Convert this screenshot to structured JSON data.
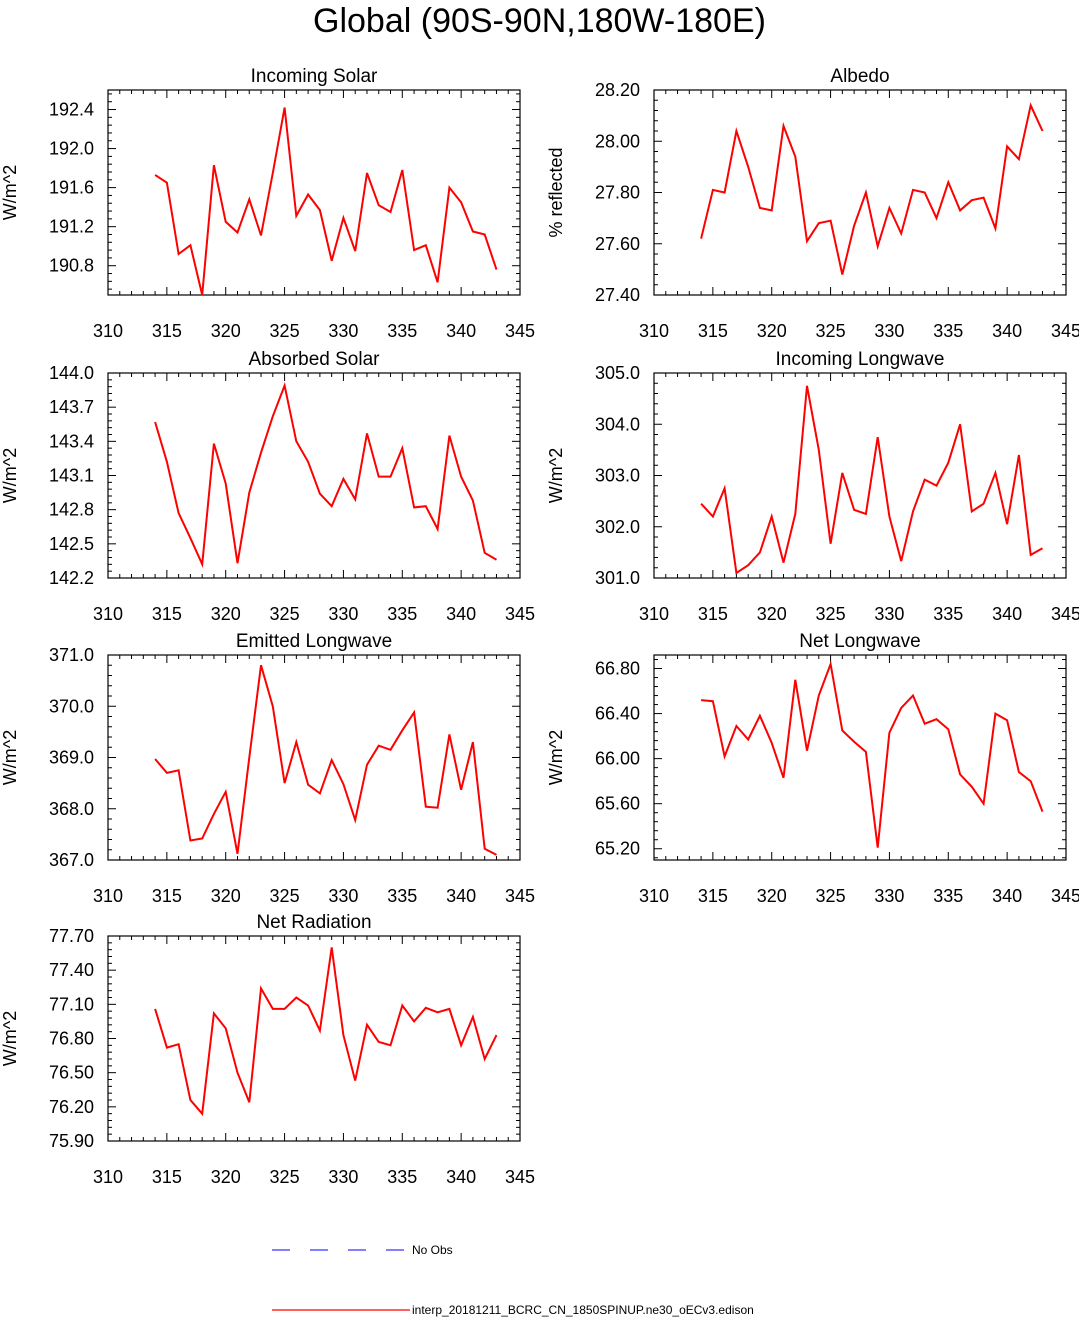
{
  "title": "Global (90S-90N,180W-180E)",
  "legend": {
    "obs_label": "No Obs",
    "obs_color": "#3333ff",
    "model_label": "interp_20181211_BCRC_CN_1850SPINUP.ne30_oECv3.edison",
    "model_color": "#ff0000"
  },
  "chart_data": [
    {
      "type": "line",
      "title": "Incoming Solar",
      "ylabel": "W/m^2",
      "xlim": [
        310,
        345
      ],
      "ylim": [
        190.5,
        192.6
      ],
      "yticks": [
        "190.8",
        "191.2",
        "191.6",
        "192.0",
        "192.4"
      ],
      "xticks": [
        "310",
        "315",
        "320",
        "325",
        "330",
        "335",
        "340",
        "345"
      ],
      "x": [
        314,
        315,
        316,
        317,
        318,
        319,
        320,
        321,
        322,
        323,
        324,
        325,
        326,
        327,
        328,
        329,
        330,
        331,
        332,
        333,
        334,
        335,
        336,
        337,
        338,
        339,
        340,
        341,
        342,
        343
      ],
      "y": [
        191.73,
        191.65,
        190.92,
        191.01,
        190.5,
        191.83,
        191.25,
        191.14,
        191.48,
        191.11,
        191.75,
        192.42,
        191.31,
        191.53,
        191.37,
        190.85,
        191.29,
        190.95,
        191.75,
        191.42,
        191.35,
        191.78,
        190.96,
        191.01,
        190.63,
        191.6,
        191.45,
        191.15,
        191.12,
        190.76
      ],
      "series": [
        {
          "name": "interp_20181211_BCRC_CN_1850SPINUP.ne30_oECv3.edison",
          "color": "#ff0000"
        }
      ]
    },
    {
      "type": "line",
      "title": "Albedo",
      "ylabel": "% reflected",
      "xlim": [
        310,
        345
      ],
      "ylim": [
        27.4,
        28.2
      ],
      "yticks": [
        "27.40",
        "27.60",
        "27.80",
        "28.00",
        "28.20"
      ],
      "xticks": [
        "310",
        "315",
        "320",
        "325",
        "330",
        "335",
        "340",
        "345"
      ],
      "x": [
        314,
        315,
        316,
        317,
        318,
        319,
        320,
        321,
        322,
        323,
        324,
        325,
        326,
        327,
        328,
        329,
        330,
        331,
        332,
        333,
        334,
        335,
        336,
        337,
        338,
        339,
        340,
        341,
        342,
        343
      ],
      "y": [
        27.62,
        27.81,
        27.8,
        28.04,
        27.9,
        27.74,
        27.73,
        28.06,
        27.94,
        27.61,
        27.68,
        27.69,
        27.48,
        27.67,
        27.8,
        27.59,
        27.74,
        27.64,
        27.81,
        27.8,
        27.7,
        27.84,
        27.73,
        27.77,
        27.78,
        27.66,
        27.98,
        27.93,
        28.14,
        28.04
      ],
      "series": [
        {
          "name": "interp_20181211_BCRC_CN_1850SPINUP.ne30_oECv3.edison",
          "color": "#ff0000"
        }
      ]
    },
    {
      "type": "line",
      "title": "Absorbed Solar",
      "ylabel": "W/m^2",
      "xlim": [
        310,
        345
      ],
      "ylim": [
        142.2,
        144.0
      ],
      "yticks": [
        "142.2",
        "142.5",
        "142.8",
        "143.1",
        "143.4",
        "143.7",
        "144.0"
      ],
      "xticks": [
        "310",
        "315",
        "320",
        "325",
        "330",
        "335",
        "340",
        "345"
      ],
      "x": [
        314,
        315,
        316,
        317,
        318,
        319,
        320,
        321,
        322,
        323,
        324,
        325,
        326,
        327,
        328,
        329,
        330,
        331,
        332,
        333,
        334,
        335,
        336,
        337,
        338,
        339,
        340,
        341,
        342,
        343
      ],
      "y": [
        143.57,
        143.22,
        142.77,
        142.55,
        142.32,
        143.38,
        143.03,
        142.33,
        142.95,
        143.3,
        143.62,
        143.89,
        143.4,
        143.22,
        142.94,
        142.83,
        143.07,
        142.89,
        143.47,
        143.09,
        143.09,
        143.34,
        142.82,
        142.83,
        142.63,
        143.45,
        143.09,
        142.88,
        142.42,
        142.36
      ],
      "series": [
        {
          "name": "interp_20181211_BCRC_CN_1850SPINUP.ne30_oECv3.edison",
          "color": "#ff0000"
        }
      ]
    },
    {
      "type": "line",
      "title": "Incoming Longwave",
      "ylabel": "W/m^2",
      "xlim": [
        310,
        345
      ],
      "ylim": [
        301.0,
        305.0
      ],
      "yticks": [
        "301.0",
        "302.0",
        "303.0",
        "304.0",
        "305.0"
      ],
      "xticks": [
        "310",
        "315",
        "320",
        "325",
        "330",
        "335",
        "340",
        "345"
      ],
      "x": [
        314,
        315,
        316,
        317,
        318,
        319,
        320,
        321,
        322,
        323,
        324,
        325,
        326,
        327,
        328,
        329,
        330,
        331,
        332,
        333,
        334,
        335,
        336,
        337,
        338,
        339,
        340,
        341,
        342,
        343
      ],
      "y": [
        302.45,
        302.2,
        302.75,
        301.1,
        301.25,
        301.5,
        302.2,
        301.3,
        302.25,
        304.75,
        303.5,
        301.67,
        303.05,
        302.33,
        302.25,
        303.75,
        302.2,
        301.33,
        302.3,
        302.92,
        302.8,
        303.25,
        304.0,
        302.3,
        302.45,
        303.05,
        302.05,
        303.4,
        301.45,
        301.58
      ],
      "series": [
        {
          "name": "interp_20181211_BCRC_CN_1850SPINUP.ne30_oECv3.edison",
          "color": "#ff0000"
        }
      ]
    },
    {
      "type": "line",
      "title": "Emitted Longwave",
      "ylabel": "W/m^2",
      "xlim": [
        310,
        345
      ],
      "ylim": [
        367.0,
        371.0
      ],
      "yticks": [
        "367.0",
        "368.0",
        "369.0",
        "370.0",
        "371.0"
      ],
      "xticks": [
        "310",
        "315",
        "320",
        "325",
        "330",
        "335",
        "340",
        "345"
      ],
      "x": [
        314,
        315,
        316,
        317,
        318,
        319,
        320,
        321,
        322,
        323,
        324,
        325,
        326,
        327,
        328,
        329,
        330,
        331,
        332,
        333,
        334,
        335,
        336,
        337,
        338,
        339,
        340,
        341,
        342,
        343
      ],
      "y": [
        368.97,
        368.7,
        368.75,
        367.38,
        367.42,
        367.9,
        368.33,
        367.12,
        369.0,
        370.8,
        370.0,
        368.5,
        369.3,
        368.47,
        368.3,
        368.95,
        368.48,
        367.78,
        368.86,
        369.23,
        369.15,
        369.53,
        369.88,
        368.04,
        368.02,
        369.45,
        368.37,
        369.3,
        367.22,
        367.1
      ],
      "series": [
        {
          "name": "interp_20181211_BCRC_CN_1850SPINUP.ne30_oECv3.edison",
          "color": "#ff0000"
        }
      ]
    },
    {
      "type": "line",
      "title": "Net Longwave",
      "ylabel": "W/m^2",
      "xlim": [
        310,
        345
      ],
      "ylim": [
        65.1,
        66.92
      ],
      "yticks": [
        "65.20",
        "65.60",
        "66.00",
        "66.40",
        "66.80"
      ],
      "xticks": [
        "310",
        "315",
        "320",
        "325",
        "330",
        "335",
        "340",
        "345"
      ],
      "x": [
        314,
        315,
        316,
        317,
        318,
        319,
        320,
        321,
        322,
        323,
        324,
        325,
        326,
        327,
        328,
        329,
        330,
        331,
        332,
        333,
        334,
        335,
        336,
        337,
        338,
        339,
        340,
        341,
        342,
        343
      ],
      "y": [
        66.52,
        66.51,
        66.02,
        66.29,
        66.17,
        66.38,
        66.14,
        65.83,
        66.7,
        66.07,
        66.56,
        66.84,
        66.25,
        66.15,
        66.06,
        65.21,
        66.23,
        66.45,
        66.56,
        66.31,
        66.35,
        66.26,
        65.86,
        65.75,
        65.6,
        66.4,
        66.34,
        65.88,
        65.8,
        65.53
      ],
      "series": [
        {
          "name": "interp_20181211_BCRC_CN_1850SPINUP.ne30_oECv3.edison",
          "color": "#ff0000"
        }
      ]
    },
    {
      "type": "line",
      "title": "Net Radiation",
      "ylabel": "W/m^2",
      "xlim": [
        310,
        345
      ],
      "ylim": [
        75.9,
        77.7
      ],
      "yticks": [
        "75.90",
        "76.20",
        "76.50",
        "76.80",
        "77.10",
        "77.40",
        "77.70"
      ],
      "xticks": [
        "310",
        "315",
        "320",
        "325",
        "330",
        "335",
        "340",
        "345"
      ],
      "x": [
        314,
        315,
        316,
        317,
        318,
        319,
        320,
        321,
        322,
        323,
        324,
        325,
        326,
        327,
        328,
        329,
        330,
        331,
        332,
        333,
        334,
        335,
        336,
        337,
        338,
        339,
        340,
        341,
        342,
        343
      ],
      "y": [
        77.06,
        76.72,
        76.75,
        76.26,
        76.14,
        77.02,
        76.89,
        76.5,
        76.24,
        77.24,
        77.06,
        77.06,
        77.16,
        77.09,
        76.87,
        77.6,
        76.83,
        76.43,
        76.92,
        76.77,
        76.74,
        77.09,
        76.95,
        77.07,
        77.03,
        77.06,
        76.74,
        76.99,
        76.62,
        76.83
      ],
      "series": [
        {
          "name": "interp_20181211_BCRC_CN_1850SPINUP.ne30_oECv3.edison",
          "color": "#ff0000"
        }
      ]
    }
  ]
}
